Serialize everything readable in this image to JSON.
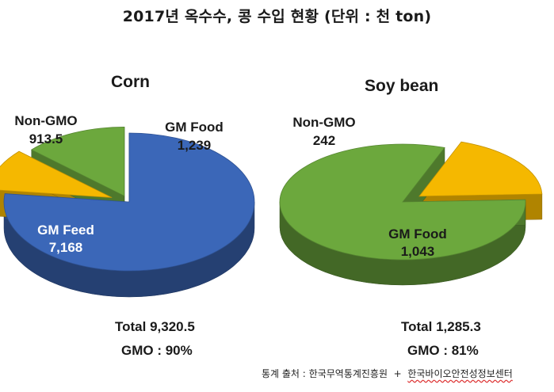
{
  "title": "2017년 옥수수, 콩 수입 현황 (단위 : 천 ton)",
  "chart_data": [
    {
      "type": "pie",
      "title": "Corn",
      "slices": [
        {
          "label": "GM Feed",
          "value": 7168,
          "value_text": "7,168",
          "color": "#3b67b8"
        },
        {
          "label": "Non-GMO",
          "value": 913.5,
          "value_text": "913.5",
          "color": "#f5b800"
        },
        {
          "label": "GM Food",
          "value": 1239,
          "value_text": "1,239",
          "color": "#6ca83d"
        }
      ],
      "total_text": "Total 9,320.5",
      "gmo_text": "GMO : 90%"
    },
    {
      "type": "pie",
      "title": "Soy bean",
      "slices": [
        {
          "label": "Non-GMO",
          "value": 242,
          "value_text": "242",
          "color": "#f5b800"
        },
        {
          "label": "GM Food",
          "value": 1043,
          "value_text": "1,043",
          "color": "#6ca83d"
        }
      ],
      "total_text": "Total 1,285.3",
      "gmo_text": "GMO : 81%"
    }
  ],
  "source": {
    "label": "통계 출처 : ",
    "org1": "한국무역통계진흥원",
    "joiner": "  +  ",
    "org2": "한국바이오안전성정보센터"
  }
}
